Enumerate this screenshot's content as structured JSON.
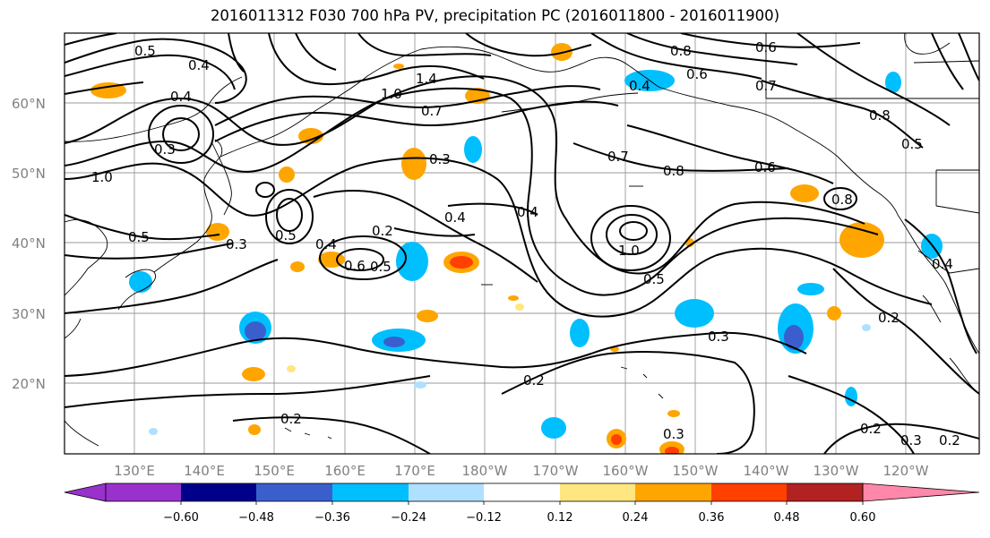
{
  "title": "2016011312 F030 700 hPa PV, precipitation PC (2016011800 - 2016011900)",
  "lat_labels": [
    "60°N",
    "50°N",
    "40°N",
    "30°N",
    "20°N"
  ],
  "lon_labels": [
    "130°E",
    "140°E",
    "150°E",
    "160°E",
    "170°E",
    "180°W",
    "170°W",
    "160°W",
    "150°W",
    "140°W",
    "130°W",
    "120°W"
  ],
  "colorbar": {
    "ticks": [
      "−0.60",
      "−0.48",
      "−0.36",
      "−0.24",
      "−0.12",
      "0.12",
      "0.24",
      "0.36",
      "0.48",
      "0.60"
    ],
    "colors": [
      "#9932cc",
      "#00008b",
      "#3a5fcd",
      "#00bfff",
      "#b0e0ff",
      "#ffffff",
      "#ffe680",
      "#ffa500",
      "#ff4000",
      "#b22222",
      "#ff88aa"
    ]
  },
  "contour_labels": [
    {
      "text": "0.5"
    },
    {
      "text": "0.4"
    },
    {
      "text": "0.4"
    },
    {
      "text": "1.0"
    },
    {
      "text": "0.3"
    },
    {
      "text": "0.5"
    },
    {
      "text": "0.3"
    },
    {
      "text": "0.5"
    },
    {
      "text": "0.4"
    },
    {
      "text": "0.2"
    },
    {
      "text": "0.6"
    },
    {
      "text": "0.5"
    },
    {
      "text": "1.4"
    },
    {
      "text": "1.0"
    },
    {
      "text": "0.7"
    },
    {
      "text": "0.3"
    },
    {
      "text": "0.4"
    },
    {
      "text": "0.4"
    },
    {
      "text": "0.4"
    },
    {
      "text": "0.8"
    },
    {
      "text": "0.6"
    },
    {
      "text": "0.7"
    },
    {
      "text": "0.6"
    },
    {
      "text": "0.7"
    },
    {
      "text": "0.8"
    },
    {
      "text": "0.5"
    },
    {
      "text": "0.8"
    },
    {
      "text": "0.6"
    },
    {
      "text": "1.0"
    },
    {
      "text": "0.5"
    },
    {
      "text": "0.3"
    },
    {
      "text": "0.2"
    },
    {
      "text": "0.2"
    },
    {
      "text": "0.3"
    },
    {
      "text": "0.2"
    },
    {
      "text": "0.2"
    },
    {
      "text": "0.3"
    },
    {
      "text": "0.2"
    },
    {
      "text": "0.4"
    },
    {
      "text": "0.8"
    }
  ]
}
